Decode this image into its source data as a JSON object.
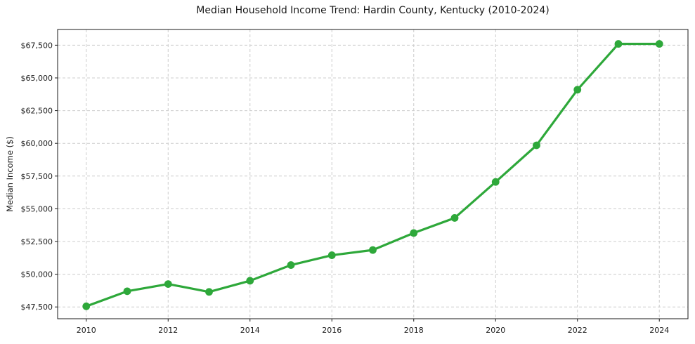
{
  "chart_data": {
    "type": "line",
    "title": "Median Household Income Trend: Hardin County, Kentucky (2010-2024)",
    "xlabel": "",
    "ylabel": "Median Income ($)",
    "x": [
      2010,
      2011,
      2012,
      2013,
      2014,
      2015,
      2016,
      2017,
      2018,
      2019,
      2020,
      2021,
      2022,
      2023,
      2024
    ],
    "values": [
      47550,
      48700,
      49250,
      48650,
      49500,
      50700,
      51450,
      51850,
      53150,
      54300,
      57050,
      59850,
      64100,
      67600,
      67600
    ],
    "xticks": {
      "values": [
        2010,
        2012,
        2014,
        2016,
        2018,
        2020,
        2022,
        2024
      ],
      "labels": [
        "2010",
        "2012",
        "2014",
        "2016",
        "2018",
        "2020",
        "2022",
        "2024"
      ]
    },
    "yticks": {
      "values": [
        47500,
        50000,
        52500,
        55000,
        57500,
        60000,
        62500,
        65000,
        67500
      ],
      "labels": [
        "$47,500",
        "$50,000",
        "$52,500",
        "$55,000",
        "$57,500",
        "$60,000",
        "$62,500",
        "$65,000",
        "$67,500"
      ]
    },
    "xlim": [
      2009.3,
      2024.7
    ],
    "ylim": [
      46600,
      68700
    ],
    "grid": true,
    "grid_style": "dashed",
    "legend": false,
    "colors": {
      "line": "#2ea83a",
      "marker": "#2ea83a",
      "grid": "#cccccc",
      "spine": "#1a1a1a",
      "text": "#1a1a1a",
      "background": "#ffffff"
    }
  }
}
